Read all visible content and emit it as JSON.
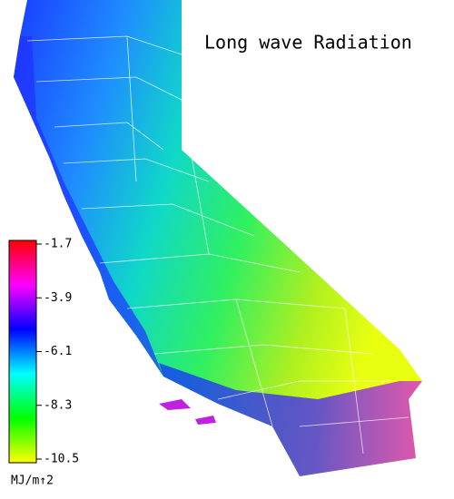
{
  "title": "Long wave Radiation",
  "colorbar": {
    "range": [
      -10.5,
      -1.7
    ],
    "ticks": [
      -1.7,
      -3.9,
      -6.1,
      -8.3,
      -10.5
    ],
    "unit": "MJ/m↑2",
    "colors": [
      "#ffff00",
      "#00ff00",
      "#00ffff",
      "#0000ff",
      "#ff00ff",
      "#ff0000"
    ]
  }
}
